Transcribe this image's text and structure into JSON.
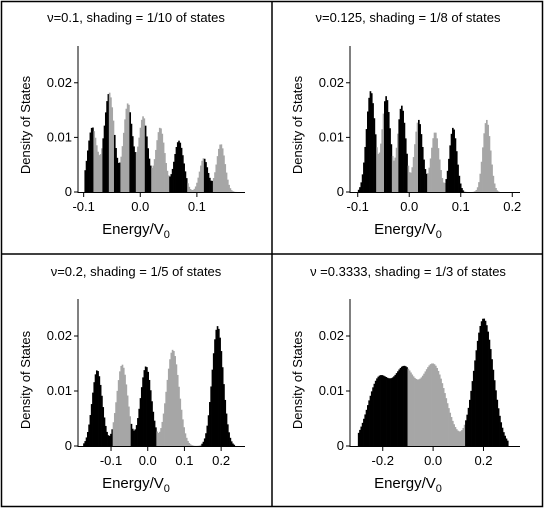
{
  "colors": {
    "dark": "#000000",
    "light": "#a6a6a6",
    "frame": "#000000",
    "background": "#ffffff"
  },
  "chart_data": [
    {
      "type": "area",
      "title": "ν=0.1, shading = 1/10 of states",
      "xlabel": "Energy/V",
      "xlabel_sub": "0",
      "ylabel": "Density of States",
      "xlim": [
        -0.11,
        0.185
      ],
      "ylim": [
        0,
        0.026
      ],
      "xticks": [
        -0.1,
        0.0,
        0.1
      ],
      "xtick_labels": [
        "-0.1",
        "0.0",
        "0.1"
      ],
      "yticks": [
        0,
        0.01,
        0.02
      ],
      "ytick_labels": [
        "0",
        "0.01",
        "0.02"
      ],
      "grid": false,
      "peaks": [
        [
          -0.085,
          0.0118,
          0.0085
        ],
        [
          -0.055,
          0.0182,
          0.009
        ],
        [
          -0.022,
          0.0162,
          0.008
        ],
        [
          0.005,
          0.0138,
          0.008
        ],
        [
          0.035,
          0.0118,
          0.008
        ],
        [
          0.068,
          0.0094,
          0.0085
        ],
        [
          0.112,
          0.0062,
          0.0075
        ],
        [
          0.142,
          0.0088,
          0.0075
        ]
      ],
      "bands": [
        {
          "from": -0.098,
          "to": -0.082,
          "shade": "dark"
        },
        {
          "from": -0.082,
          "to": -0.068,
          "shade": "light"
        },
        {
          "from": -0.068,
          "to": -0.056,
          "shade": "dark"
        },
        {
          "from": -0.056,
          "to": -0.046,
          "shade": "light"
        },
        {
          "from": -0.046,
          "to": -0.034,
          "shade": "dark"
        },
        {
          "from": -0.034,
          "to": -0.02,
          "shade": "light"
        },
        {
          "from": -0.02,
          "to": -0.008,
          "shade": "dark"
        },
        {
          "from": -0.008,
          "to": 0.008,
          "shade": "light"
        },
        {
          "from": 0.008,
          "to": 0.02,
          "shade": "dark"
        },
        {
          "from": 0.02,
          "to": 0.05,
          "shade": "light"
        },
        {
          "from": 0.05,
          "to": 0.084,
          "shade": "dark"
        },
        {
          "from": 0.084,
          "to": 0.113,
          "shade": "light"
        },
        {
          "from": 0.113,
          "to": 0.128,
          "shade": "dark"
        },
        {
          "from": 0.128,
          "to": 0.172,
          "shade": "light"
        }
      ]
    },
    {
      "type": "area",
      "title": "ν=0.125, shading = 1/8 of states",
      "xlabel": "Energy/V",
      "xlabel_sub": "0",
      "ylabel": "Density of States",
      "xlim": [
        -0.115,
        0.215
      ],
      "ylim": [
        0,
        0.026
      ],
      "xticks": [
        -0.1,
        0.0,
        0.1,
        0.2
      ],
      "xtick_labels": [
        "-0.1",
        "0.0",
        "0.1",
        "0.2"
      ],
      "yticks": [
        0,
        0.01,
        0.02
      ],
      "ytick_labels": [
        "0",
        "0.01",
        "0.02"
      ],
      "grid": false,
      "peaks": [
        [
          -0.075,
          0.0185,
          0.0085
        ],
        [
          -0.045,
          0.0175,
          0.008
        ],
        [
          -0.015,
          0.0158,
          0.008
        ],
        [
          0.018,
          0.0132,
          0.008
        ],
        [
          0.05,
          0.011,
          0.008
        ],
        [
          0.085,
          0.0118,
          0.0072
        ],
        [
          0.15,
          0.0132,
          0.0075
        ]
      ],
      "bands": [
        {
          "from": -0.1,
          "to": -0.065,
          "shade": "dark"
        },
        {
          "from": -0.065,
          "to": -0.05,
          "shade": "light"
        },
        {
          "from": -0.05,
          "to": -0.035,
          "shade": "dark"
        },
        {
          "from": -0.035,
          "to": -0.02,
          "shade": "light"
        },
        {
          "from": -0.02,
          "to": -0.003,
          "shade": "dark"
        },
        {
          "from": -0.003,
          "to": 0.018,
          "shade": "light"
        },
        {
          "from": 0.018,
          "to": 0.035,
          "shade": "dark"
        },
        {
          "from": 0.035,
          "to": 0.07,
          "shade": "light"
        },
        {
          "from": 0.07,
          "to": 0.105,
          "shade": "dark"
        },
        {
          "from": 0.105,
          "to": 0.175,
          "shade": "light"
        }
      ]
    },
    {
      "type": "area",
      "title": "ν=0.2, shading = 1/5 of states",
      "xlabel": "Energy/V",
      "xlabel_sub": "0",
      "ylabel": "Density of States",
      "xlim": [
        -0.19,
        0.265
      ],
      "ylim": [
        0,
        0.026
      ],
      "xticks": [
        -0.1,
        0.0,
        0.1,
        0.2
      ],
      "xtick_labels": [
        "-0.1",
        "0.0",
        "0.1",
        "0.2"
      ],
      "yticks": [
        0,
        0.01,
        0.02
      ],
      "ytick_labels": [
        "0",
        "0.01",
        "0.02"
      ],
      "grid": false,
      "peaks": [
        [
          -0.138,
          0.0138,
          0.014
        ],
        [
          -0.07,
          0.0148,
          0.015
        ],
        [
          -0.005,
          0.0145,
          0.015
        ],
        [
          0.068,
          0.0175,
          0.017
        ],
        [
          0.19,
          0.0218,
          0.015
        ]
      ],
      "bands": [
        {
          "from": -0.175,
          "to": -0.097,
          "shade": "dark"
        },
        {
          "from": -0.097,
          "to": -0.048,
          "shade": "light"
        },
        {
          "from": -0.048,
          "to": 0.024,
          "shade": "dark"
        },
        {
          "from": 0.024,
          "to": 0.145,
          "shade": "light"
        },
        {
          "from": 0.145,
          "to": 0.238,
          "shade": "dark"
        }
      ]
    },
    {
      "type": "area",
      "title": "ν =0.3333, shading = 1/3 of states",
      "xlabel": "Energy/V",
      "xlabel_sub": "0",
      "ylabel": "Density of States",
      "xlim": [
        -0.33,
        0.345
      ],
      "ylim": [
        0,
        0.026
      ],
      "xticks": [
        -0.2,
        0.0,
        0.2
      ],
      "xtick_labels": [
        "-0.2",
        "0.0",
        "0.2"
      ],
      "yticks": [
        0,
        0.01,
        0.02
      ],
      "ytick_labels": [
        "0",
        "0.01",
        "0.02"
      ],
      "grid": false,
      "peaks": [
        [
          -0.215,
          0.0122,
          0.045
        ],
        [
          -0.115,
          0.0125,
          0.04
        ],
        [
          0.0,
          0.0148,
          0.05
        ],
        [
          0.2,
          0.0232,
          0.038
        ]
      ],
      "bands": [
        {
          "from": -0.3,
          "to": -0.1,
          "shade": "dark"
        },
        {
          "from": -0.1,
          "to": 0.125,
          "shade": "light"
        },
        {
          "from": 0.125,
          "to": 0.3,
          "shade": "dark"
        }
      ]
    }
  ]
}
